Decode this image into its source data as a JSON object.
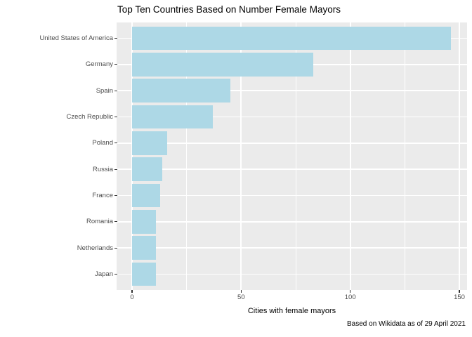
{
  "chart_data": {
    "type": "bar",
    "orientation": "horizontal",
    "title": "Top Ten Countries Based on Number Female Mayors",
    "xlabel": "Cities with female mayors",
    "caption": "Based on Wikidata as of 29 April 2021",
    "categories": [
      "United States of America",
      "Germany",
      "Spain",
      "Czech Republic",
      "Poland",
      "Russia",
      "France",
      "Romania",
      "Netherlands",
      "Japan"
    ],
    "values": [
      146,
      83,
      45,
      37,
      16,
      14,
      13,
      11,
      11,
      11
    ],
    "x_axis": {
      "ticks": [
        0,
        50,
        100,
        150
      ],
      "minor_ticks": [
        25,
        75,
        125
      ],
      "range": [
        0,
        150
      ]
    },
    "legend": "none",
    "grid": "on",
    "colors": {
      "bar_fill": "#ADD8E6",
      "panel_bg": "#EBEBEB",
      "gridline": "#FFFFFF",
      "tick_label": "#4D4D4D",
      "tick_mark": "#333333",
      "text": "#000000",
      "background": "#FFFFFF"
    }
  }
}
